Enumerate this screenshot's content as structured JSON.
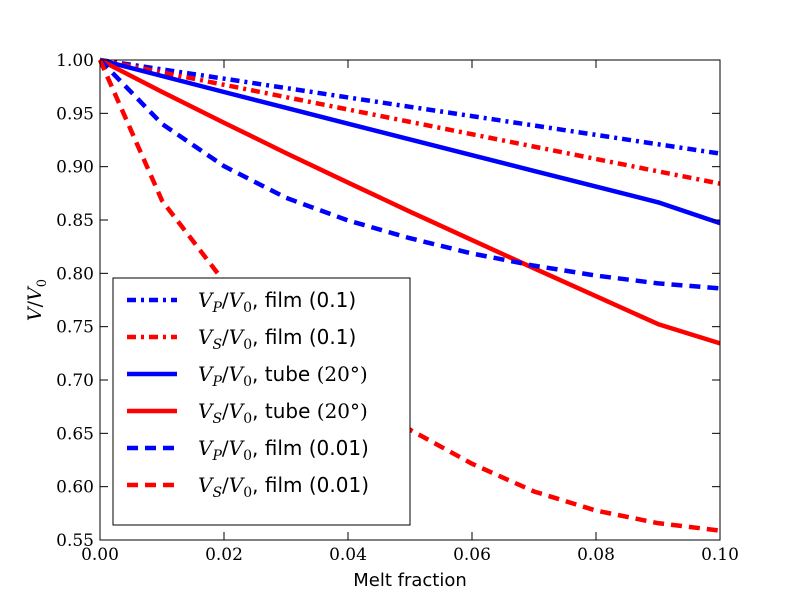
{
  "chart_data": {
    "type": "line",
    "xlabel": "Melt fraction",
    "ylabel": {
      "num": "V",
      "den": "V",
      "den_sub": "0"
    },
    "xlim": [
      0.0,
      0.1
    ],
    "ylim": [
      0.55,
      1.0
    ],
    "x_ticks": [
      {
        "value": 0.0,
        "label": "0.00"
      },
      {
        "value": 0.02,
        "label": "0.02"
      },
      {
        "value": 0.04,
        "label": "0.04"
      },
      {
        "value": 0.06,
        "label": "0.06"
      },
      {
        "value": 0.08,
        "label": "0.08"
      },
      {
        "value": 0.1,
        "label": "0.10"
      }
    ],
    "y_ticks": [
      {
        "value": 0.55,
        "label": "0.55"
      },
      {
        "value": 0.6,
        "label": "0.60"
      },
      {
        "value": 0.65,
        "label": "0.65"
      },
      {
        "value": 0.7,
        "label": "0.70"
      },
      {
        "value": 0.75,
        "label": "0.75"
      },
      {
        "value": 0.8,
        "label": "0.80"
      },
      {
        "value": 0.85,
        "label": "0.85"
      },
      {
        "value": 0.9,
        "label": "0.90"
      },
      {
        "value": 0.95,
        "label": "0.95"
      },
      {
        "value": 1.0,
        "label": "1.00"
      }
    ],
    "grid": false,
    "legend_position": "lower-left",
    "x": [
      0.0,
      0.01,
      0.02,
      0.03,
      0.04,
      0.05,
      0.06,
      0.07,
      0.08,
      0.09,
      0.1
    ],
    "series": [
      {
        "key": "vp-film-01",
        "label": {
          "V": "V",
          "sub": "P",
          "rest": ", film (0.1)",
          "paren_math": ""
        },
        "color": "#0000ff",
        "style": "dashdot",
        "values": [
          1.0,
          0.9912,
          0.9825,
          0.9737,
          0.9649,
          0.9561,
          0.9474,
          0.9386,
          0.9298,
          0.921,
          0.9123
        ]
      },
      {
        "key": "vs-film-01",
        "label": {
          "V": "V",
          "sub": "S",
          "rest": ", film (0.1)",
          "paren_math": ""
        },
        "color": "#ff0000",
        "style": "dashdot",
        "values": [
          1.0,
          0.9884,
          0.9768,
          0.9652,
          0.9536,
          0.942,
          0.9304,
          0.9188,
          0.9072,
          0.8956,
          0.8841
        ]
      },
      {
        "key": "vp-tube-20",
        "label": {
          "V": "V",
          "sub": "P",
          "rest": ", tube ",
          "paren_math": "(20°)"
        },
        "color": "#0000ff",
        "style": "solid",
        "values": [
          1.0,
          0.985,
          0.97,
          0.9552,
          0.9403,
          0.9255,
          0.9108,
          0.896,
          0.8813,
          0.8666,
          0.8471
        ]
      },
      {
        "key": "vs-tube-20",
        "label": {
          "V": "V",
          "sub": "S",
          "rest": ", tube ",
          "paren_math": "(20°)"
        },
        "color": "#ff0000",
        "style": "solid",
        "values": [
          1.0,
          0.9701,
          0.9412,
          0.9127,
          0.8851,
          0.8578,
          0.8312,
          0.8047,
          0.7786,
          0.7524,
          0.7343
        ]
      },
      {
        "key": "vp-film-001",
        "label": {
          "V": "V",
          "sub": "P",
          "rest": ", film (0.01)",
          "paren_math": ""
        },
        "color": "#0000ff",
        "style": "dashed",
        "values": [
          1.0,
          0.9401,
          0.9005,
          0.8708,
          0.8496,
          0.8329,
          0.8186,
          0.8072,
          0.7979,
          0.7906,
          0.7859
        ]
      },
      {
        "key": "vs-film-001",
        "label": {
          "V": "V",
          "sub": "S",
          "rest": ", film (0.01)",
          "paren_math": ""
        },
        "color": "#ff0000",
        "style": "dashed",
        "values": [
          1.0,
          0.8682,
          0.7923,
          0.7367,
          0.6914,
          0.6534,
          0.6215,
          0.5955,
          0.5776,
          0.5658,
          0.5588
        ]
      }
    ]
  }
}
